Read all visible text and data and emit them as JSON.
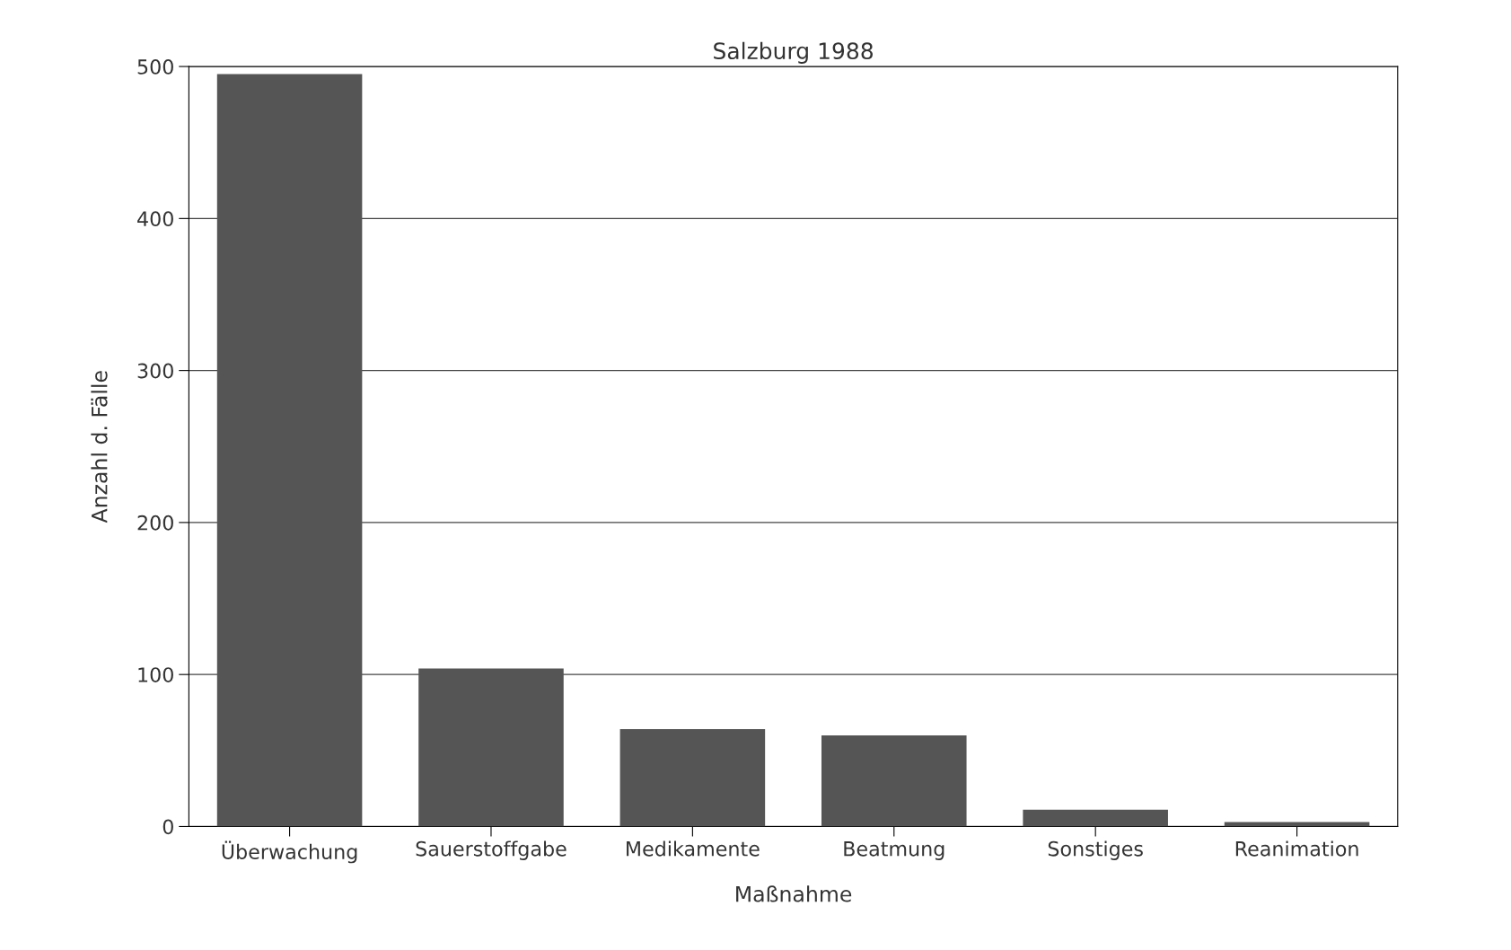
{
  "chart_data": {
    "type": "bar",
    "title": "Salzburg 1988",
    "xlabel": "Maßnahme",
    "ylabel": "Anzahl d. Fälle",
    "categories": [
      "Überwachung",
      "Sauerstoffgabe",
      "Medikamente",
      "Beatmung",
      "Sonstiges",
      "Reanimation"
    ],
    "values": [
      495,
      104,
      64,
      60,
      11,
      3
    ],
    "color": "#555555",
    "ylim": [
      0,
      500
    ],
    "yticks": [
      0,
      100,
      200,
      300,
      400,
      500
    ],
    "grid": "y",
    "legend": false
  }
}
